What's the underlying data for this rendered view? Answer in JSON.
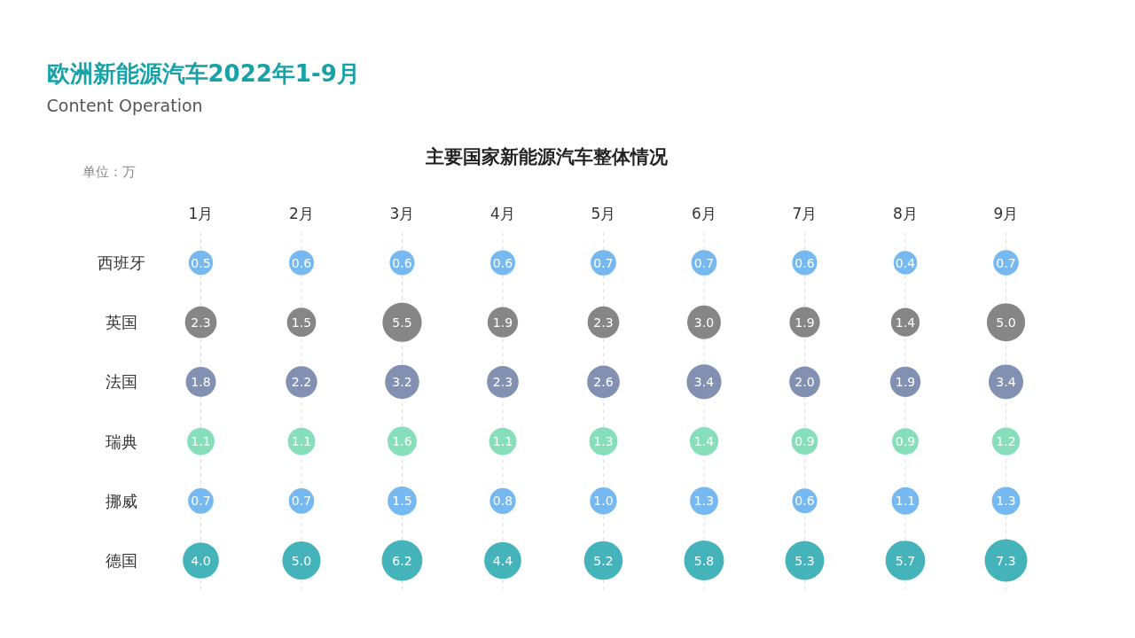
{
  "chart_data": {
    "type": "heatmap",
    "title": "欧洲新能源汽车2022年1-9月",
    "subtitle": "Content Operation",
    "annotations": [
      "主要国家新能源汽车整体情况",
      "单位：万"
    ],
    "categories": [
      "1月",
      "2月",
      "3月",
      "4月",
      "5月",
      "6月",
      "7月",
      "8月",
      "9月"
    ],
    "y_categories": [
      "西班牙",
      "英国",
      "法国",
      "瑞典",
      "挪威",
      "德国"
    ],
    "grid": "x",
    "data_labels": true,
    "cells": [
      [
        0.5,
        0.6,
        0.6,
        0.6,
        0.7,
        0.7,
        0.6,
        0.4,
        0.7
      ],
      [
        2.3,
        1.5,
        5.5,
        1.9,
        2.3,
        3.0,
        1.9,
        1.4,
        5.0
      ],
      [
        1.8,
        2.2,
        3.2,
        2.3,
        2.6,
        3.4,
        2.0,
        1.9,
        3.4
      ],
      [
        1.1,
        1.1,
        1.6,
        1.1,
        1.3,
        1.4,
        0.9,
        0.9,
        1.2
      ],
      [
        0.7,
        0.7,
        1.5,
        0.8,
        1.0,
        1.3,
        0.6,
        1.1,
        1.3
      ],
      [
        4.0,
        5.0,
        6.2,
        4.4,
        5.2,
        5.8,
        5.3,
        5.7,
        7.3
      ]
    ],
    "cell_labels": [
      [
        "0.5",
        "0.6",
        "0.6",
        "0.6",
        "0.7",
        "0.7",
        "0.6",
        "0.4",
        "0.7"
      ],
      [
        "2.3",
        "1.5",
        "5.5",
        "1.9",
        "2.3",
        "3.0",
        "1.9",
        "1.4",
        "5.0"
      ],
      [
        "1.8",
        "2.2",
        "3.2",
        "2.3",
        "2.6",
        "3.4",
        "2.0",
        "1.9",
        "3.4"
      ],
      [
        "1.1",
        "1.1",
        "1.6",
        "1.1",
        "1.3",
        "1.4",
        "0.9",
        "0.9",
        "1.2"
      ],
      [
        "0.7",
        "0.7",
        "1.5",
        "0.8",
        "1.0",
        "1.3",
        "0.6",
        "1.1",
        "1.3"
      ],
      [
        "4.0",
        "5.0",
        "6.2",
        "4.4",
        "5.2",
        "5.8",
        "5.3",
        "5.7",
        "7.3"
      ]
    ],
    "colors": [
      [
        "#6fb4ef",
        "#6fb4ef",
        "#6fb4ef",
        "#6fb4ef",
        "#6fb4ef",
        "#6fb4ef",
        "#6fb4ef",
        "#6fb4ef",
        "#6fb4ef"
      ],
      [
        "#7f7f7f",
        "#7f7f7f",
        "#7f7f7f",
        "#7f7f7f",
        "#7f7f7f",
        "#7f7f7f",
        "#7f7f7f",
        "#7f7f7f",
        "#7f7f7f"
      ],
      [
        "#7b8aae",
        "#7b8aae",
        "#7b8aae",
        "#7b8aae",
        "#7b8aae",
        "#7b8aae",
        "#7b8aae",
        "#7b8aae",
        "#7b8aae"
      ],
      [
        "#7fdcb6",
        "#7fdcb6",
        "#7fdcb6",
        "#7fdcb6",
        "#7fdcb6",
        "#7fdcb6",
        "#7fdcb6",
        "#7fdcb6",
        "#7fdcb6"
      ],
      [
        "#6fb4ef",
        "#6fb4ef",
        "#6fb4ef",
        "#6fb4ef",
        "#6fb4ef",
        "#6fb4ef",
        "#6fb4ef",
        "#6fb4ef",
        "#6fb4ef"
      ],
      [
        "#3aafb6",
        "#3aafb6",
        "#3aafb6",
        "#3aafb6",
        "#3aafb6",
        "#3aafb6",
        "#3aafb6",
        "#3aafb6",
        "#3aafb6"
      ]
    ]
  }
}
